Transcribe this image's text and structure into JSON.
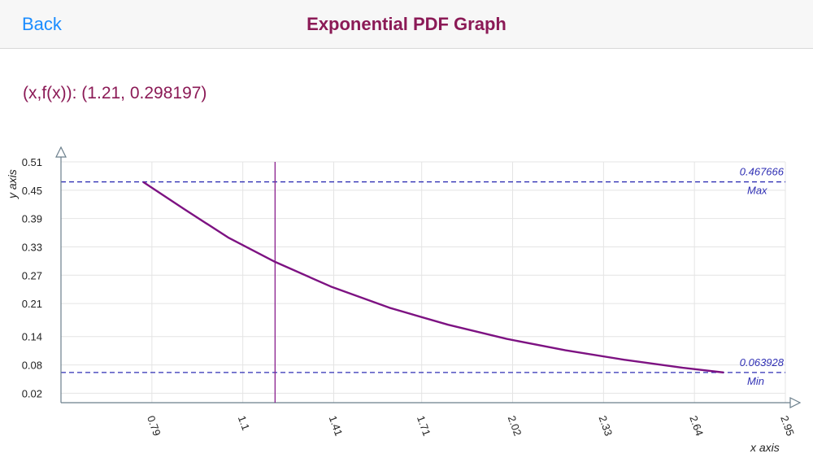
{
  "header": {
    "back_label": "Back",
    "title": "Exponential PDF Graph"
  },
  "readout": {
    "text": "(x,f(x)): (1.21, 0.298197)"
  },
  "colors": {
    "title": "#8b1a56",
    "back": "#1a8cff",
    "curve": "#7d1282",
    "cursor": "#8a1f8e",
    "reference": "#2f2fb4",
    "grid": "#e4e4e4",
    "axis": "#6b7f8c"
  },
  "chart_data": {
    "type": "line",
    "xlabel": "x axis",
    "ylabel": "y axis",
    "xlim": [
      0.48,
      2.95
    ],
    "ylim": [
      0.0,
      0.51
    ],
    "x_ticks": [
      "0.79",
      "1.1",
      "1.41",
      "1.71",
      "2.02",
      "2.33",
      "2.64",
      "2.95"
    ],
    "x_tick_values": [
      0.79,
      1.1,
      1.41,
      1.71,
      2.02,
      2.33,
      2.64,
      2.95
    ],
    "y_ticks": [
      "0.02",
      "0.08",
      "0.14",
      "0.21",
      "0.27",
      "0.33",
      "0.39",
      "0.45",
      "0.51"
    ],
    "y_tick_values": [
      0.02,
      0.08,
      0.14,
      0.21,
      0.27,
      0.33,
      0.39,
      0.45,
      0.51
    ],
    "grid": true,
    "series": [
      {
        "x": [
          0.76,
          0.9,
          1.05,
          1.21,
          1.4,
          1.6,
          1.8,
          2.0,
          2.2,
          2.4,
          2.6,
          2.74
        ],
        "y": [
          0.467666,
          0.41,
          0.35,
          0.298197,
          0.246,
          0.201,
          0.165,
          0.135,
          0.111,
          0.091,
          0.074,
          0.063928
        ]
      }
    ],
    "cursor": {
      "x": 1.21,
      "y": 0.298197
    },
    "max_line": {
      "value": 0.467666,
      "value_label": "0.467666",
      "label": "Max"
    },
    "min_line": {
      "value": 0.063928,
      "value_label": "0.063928",
      "label": "Min"
    }
  }
}
